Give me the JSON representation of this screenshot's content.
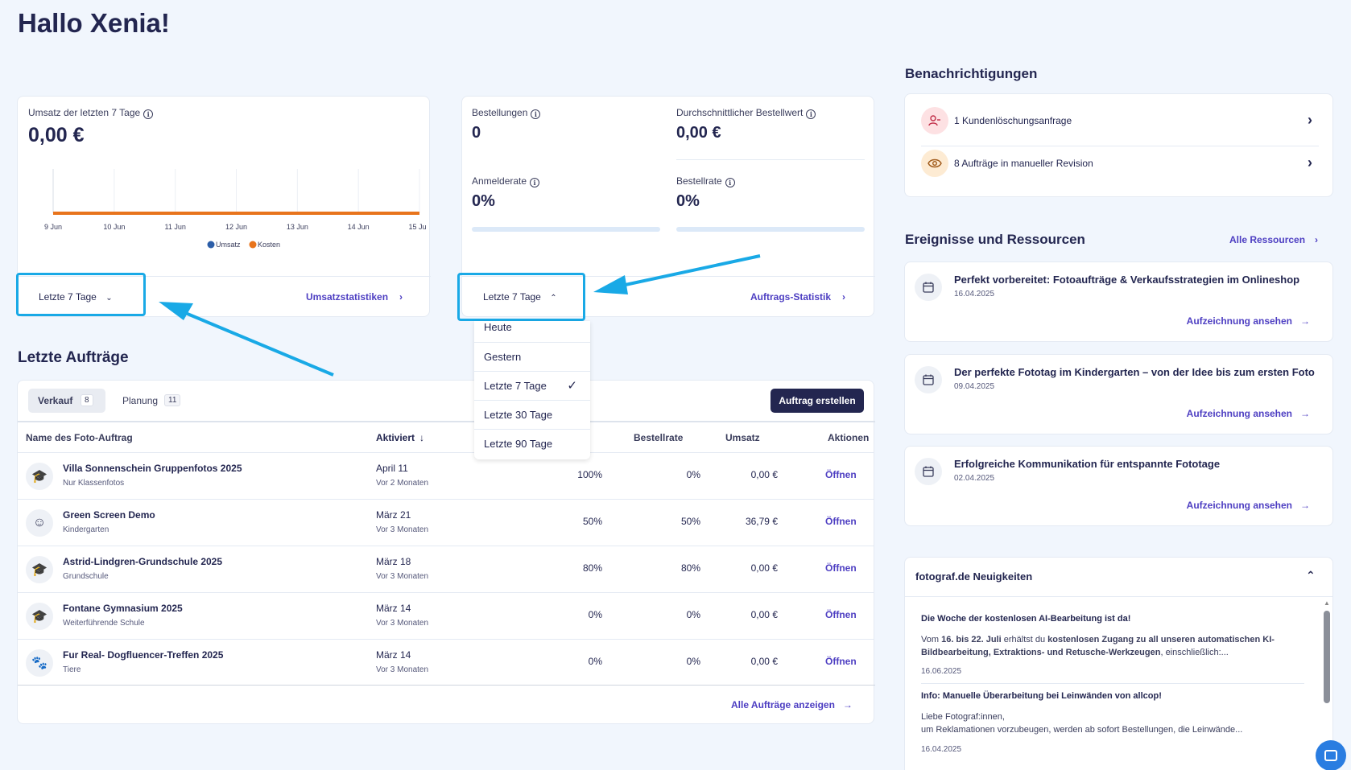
{
  "greeting": "Hallo Xenia!",
  "revenue_card": {
    "label": "Umsatz der letzten 7 Tage",
    "value": "0,00 €",
    "period_button": "Letzte 7 Tage",
    "link": "Umsatzstatistiken"
  },
  "chart_data": {
    "type": "line",
    "x": [
      "9 Jun",
      "10 Jun",
      "11 Jun",
      "12 Jun",
      "13 Jun",
      "14 Jun",
      "15 Jun"
    ],
    "series": [
      {
        "name": "Umsatz",
        "color": "#2c5ea8",
        "values": [
          0,
          0,
          0,
          0,
          0,
          0,
          0
        ]
      },
      {
        "name": "Kosten",
        "color": "#e8741c",
        "values": [
          0,
          0,
          0,
          0,
          0,
          0,
          0
        ]
      }
    ],
    "legend": "bottom",
    "grid": true
  },
  "orders_card": {
    "orders_label": "Bestellungen",
    "orders_value": "0",
    "avg_label": "Durchschnittlicher Bestellwert",
    "avg_value": "0,00 €",
    "signup_label": "Anmelderate",
    "signup_value": "0%",
    "signup_progress": 0,
    "order_rate_label": "Bestellrate",
    "order_rate_value": "0%",
    "order_rate_progress": 0,
    "period_button": "Letzte 7 Tage",
    "link": "Auftrags-Statistik"
  },
  "period_menu": {
    "items": [
      "Heute",
      "Gestern",
      "Letzte 7 Tage",
      "Letzte 30 Tage",
      "Letzte 90 Tage"
    ],
    "selected": "Letzte 7 Tage",
    "check": "✓"
  },
  "recent_orders": {
    "title": "Letzte Aufträge",
    "tabs": [
      {
        "label": "Verkauf",
        "count": "8"
      },
      {
        "label": "Planung",
        "count": "11"
      }
    ],
    "create_button": "Auftrag erstellen",
    "columns": {
      "name": "Name des Foto-Auftrag",
      "activated": "Aktiviert",
      "order_rate": "Bestellrate",
      "revenue": "Umsatz",
      "actions": "Aktionen"
    },
    "rows": [
      {
        "name": "Villa Sonnenschein Gruppenfotos 2025",
        "sub": "Nur Klassenfotos",
        "date": "April 11",
        "ago": "Vor 2 Monaten",
        "signup": "100%",
        "order_rate": "0%",
        "revenue": "0,00 €",
        "action": "Öffnen",
        "icon": "graduation-cap-icon"
      },
      {
        "name": "Green Screen Demo",
        "sub": "Kindergarten",
        "date": "März 21",
        "ago": "Vor 3 Monaten",
        "signup": "50%",
        "order_rate": "50%",
        "revenue": "36,79 €",
        "action": "Öffnen",
        "icon": "smiley-icon"
      },
      {
        "name": "Astrid-Lindgren-Grundschule 2025",
        "sub": "Grundschule",
        "date": "März 18",
        "ago": "Vor 3 Monaten",
        "signup": "80%",
        "order_rate": "80%",
        "revenue": "0,00 €",
        "action": "Öffnen",
        "icon": "graduation-cap-icon"
      },
      {
        "name": "Fontane Gymnasium 2025",
        "sub": "Weiterführende Schule",
        "date": "März 14",
        "ago": "Vor 3 Monaten",
        "signup": "0%",
        "order_rate": "0%",
        "revenue": "0,00 €",
        "action": "Öffnen",
        "icon": "graduation-cap-icon"
      },
      {
        "name": "Fur Real- Dogfluencer-Treffen 2025",
        "sub": "Tiere",
        "date": "März 14",
        "ago": "Vor 3 Monaten",
        "signup": "0%",
        "order_rate": "0%",
        "revenue": "0,00 €",
        "action": "Öffnen",
        "icon": "paw-icon"
      }
    ],
    "show_all": "Alle Aufträge anzeigen"
  },
  "notifications": {
    "title": "Benachrichtigungen",
    "items": [
      {
        "text": "1 Kundenlöschungsanfrage",
        "icon": "user-minus-icon",
        "color": "#fde1e3"
      },
      {
        "text": "8 Aufträge in manueller Revision",
        "icon": "eye-icon",
        "color": "#fdebd3"
      }
    ]
  },
  "events": {
    "title": "Ereignisse und Ressourcen",
    "all_link": "Alle Ressourcen",
    "items": [
      {
        "title": "Perfekt vorbereitet: Fotoaufträge & Verkaufsstrategien im Onlineshop",
        "date": "16.04.2025",
        "link": "Aufzeichnung ansehen"
      },
      {
        "title": "Der perfekte Fototag im Kindergarten – von der Idee bis zum ersten Foto",
        "date": "09.04.2025",
        "link": "Aufzeichnung ansehen"
      },
      {
        "title": "Erfolgreiche Kommunikation für entspannte Fototage",
        "date": "02.04.2025",
        "link": "Aufzeichnung ansehen"
      }
    ]
  },
  "news": {
    "title": "fotograf.de Neuigkeiten",
    "items": [
      {
        "title": "Die Woche der kostenlosen AI-Bearbeitung ist da!",
        "text_parts": [
          "Vom ",
          "16. bis 22. Juli",
          " erhältst du ",
          "kostenlosen Zugang zu all unseren automatischen KI-Bildbearbeitung, Extraktions- und Retusche-Werkzeugen",
          ", einschließlich:..."
        ],
        "date": "16.06.2025"
      },
      {
        "title": "Info: Manuelle Überarbeitung bei Leinwänden von allcop!",
        "line1": "Liebe Fotograf:innen,",
        "line2": "um Reklamationen vorzubeugen, werden ab sofort Bestellungen, die Leinwände...",
        "date": "16.04.2025"
      }
    ]
  }
}
